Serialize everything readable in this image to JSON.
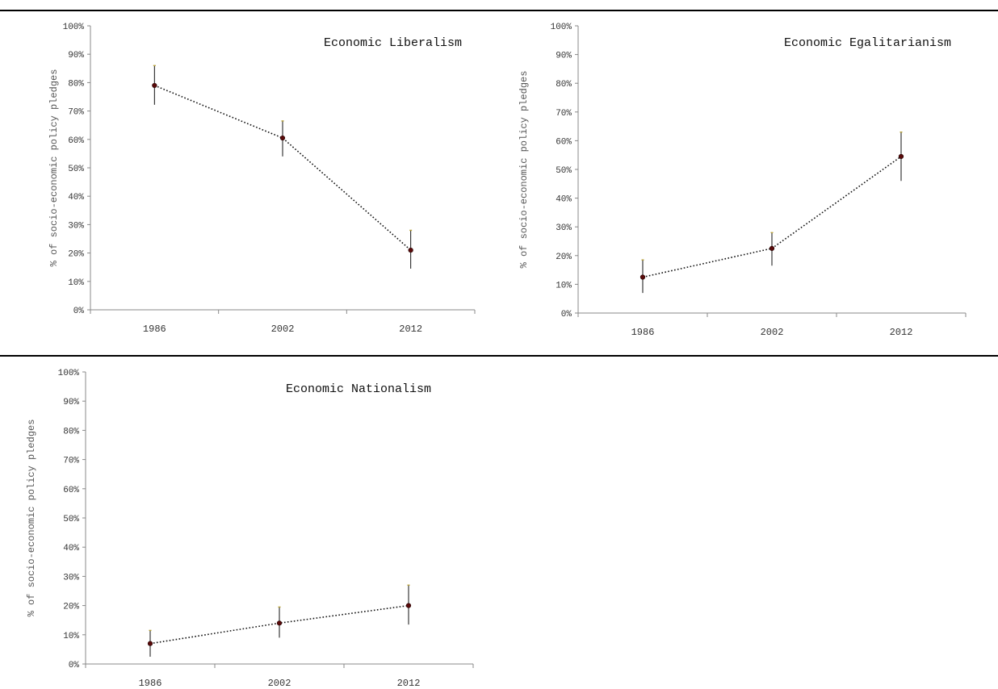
{
  "chart_data": [
    {
      "type": "line",
      "title": "Economic Liberalism",
      "ylabel": "% of socio-economic policy pledges",
      "xlabel": "",
      "categories": [
        "1986",
        "2002",
        "2012"
      ],
      "ylim": [
        0,
        100
      ],
      "yticks": [
        "0%",
        "10%",
        "20%",
        "30%",
        "40%",
        "50%",
        "60%",
        "70%",
        "80%",
        "90%",
        "100%"
      ],
      "series": [
        {
          "values": [
            79,
            60.5,
            21
          ],
          "error_low": [
            72.2,
            54,
            14.5
          ],
          "error_high": [
            86,
            66.5,
            28
          ]
        }
      ],
      "grid": false,
      "line_style": "dotted",
      "marker_color": "#5a0a0a"
    },
    {
      "type": "line",
      "title": "Economic Egalitarianism",
      "ylabel": "% of socio-economic policy pledges",
      "xlabel": "",
      "categories": [
        "1986",
        "2002",
        "2012"
      ],
      "ylim": [
        0,
        100
      ],
      "yticks": [
        "0%",
        "10%",
        "20%",
        "30%",
        "40%",
        "50%",
        "60%",
        "70%",
        "80%",
        "90%",
        "100%"
      ],
      "series": [
        {
          "values": [
            12.5,
            22.5,
            54.5
          ],
          "error_low": [
            7,
            16.5,
            46
          ],
          "error_high": [
            18.5,
            28,
            63
          ]
        }
      ],
      "grid": false,
      "line_style": "dotted",
      "marker_color": "#5a0a0a"
    },
    {
      "type": "line",
      "title": "Economic Nationalism",
      "ylabel": "% of socio-economic policy pledges",
      "xlabel": "",
      "categories": [
        "1986",
        "2002",
        "2012"
      ],
      "ylim": [
        0,
        100
      ],
      "yticks": [
        "0%",
        "10%",
        "20%",
        "30%",
        "40%",
        "50%",
        "60%",
        "70%",
        "80%",
        "90%",
        "100%"
      ],
      "series": [
        {
          "values": [
            7,
            14,
            20
          ],
          "error_low": [
            2.5,
            9,
            13.5
          ],
          "error_high": [
            11.5,
            19.5,
            27
          ]
        }
      ],
      "grid": false,
      "line_style": "dotted",
      "marker_color": "#5a0a0a"
    }
  ]
}
